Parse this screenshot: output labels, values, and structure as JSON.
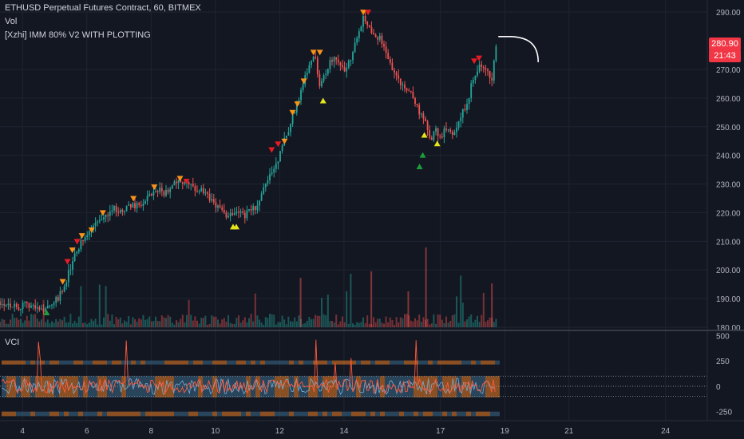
{
  "legend": {
    "title": "ETHUSD Perpetual Futures Contract, 60, BITMEX",
    "vol_label": "Vol",
    "indicator_label": "[Xzhi] IMM 80% V2 WITH PLOTTING"
  },
  "price_tags": {
    "last_price": "280.90",
    "countdown": "21:43"
  },
  "sub_pane": {
    "label": "VCI"
  },
  "colors": {
    "background": "#131722",
    "grid": "#1f2431",
    "up": "#26a69a",
    "down": "#ef5350",
    "tag_bg": "#f23645",
    "arrow_orange": "#f7931a",
    "arrow_red": "#e51c23",
    "arrow_yellow": "#e5e51c",
    "arrow_green": "#1b9e3a",
    "vci_orange": "#ed7d22",
    "vci_blue": "#3b6c8c"
  },
  "chart_data": [
    {
      "type": "line",
      "name": "price",
      "x_ticks": [
        "4",
        "6",
        "8",
        "10",
        "12",
        "14",
        "17",
        "19",
        "21",
        "24"
      ],
      "y_ticks": [
        "180.00",
        "190.00",
        "200.00",
        "210.00",
        "220.00",
        "230.00",
        "240.00",
        "250.00",
        "260.00",
        "270.00",
        "290.00"
      ],
      "ylim": [
        180,
        292
      ],
      "x_range_days": [
        3.3,
        25.3
      ],
      "x": [
        3.3,
        3.6,
        3.9,
        4.2,
        4.5,
        4.8,
        5.1,
        5.25,
        5.4,
        5.6,
        5.8,
        6.0,
        6.2,
        6.4,
        6.6,
        6.8,
        7.0,
        7.2,
        7.4,
        7.6,
        7.8,
        8.0,
        8.2,
        8.4,
        8.6,
        8.8,
        9.0,
        9.2,
        9.5,
        9.7,
        9.9,
        10.1,
        10.3,
        10.5,
        10.7,
        10.9,
        11.1,
        11.3,
        11.5,
        11.7,
        11.9,
        12.0,
        12.1,
        12.3,
        12.5,
        12.65,
        12.8,
        12.95,
        13.1,
        13.25,
        13.4,
        13.6,
        13.8,
        14.0,
        14.2,
        14.4,
        14.6,
        14.75,
        14.9,
        15.1,
        15.3,
        15.6,
        15.9,
        16.1,
        16.3,
        16.5,
        16.7,
        16.85,
        17.0,
        17.2,
        17.4,
        17.6,
        17.8,
        18.0,
        18.2,
        18.4,
        18.6,
        18.75
      ],
      "y": [
        189,
        188,
        187,
        188,
        186,
        187,
        190,
        193,
        198,
        204,
        209,
        212,
        215,
        217,
        219,
        222,
        220,
        221,
        223,
        222,
        224,
        226,
        228,
        227,
        229,
        231,
        230,
        229,
        228,
        226,
        224,
        222,
        219,
        220,
        221,
        219,
        221,
        222,
        228,
        233,
        238,
        240,
        244,
        250,
        257,
        262,
        268,
        273,
        275,
        264,
        268,
        274,
        272,
        270,
        274,
        282,
        288,
        286,
        283,
        281,
        276,
        268,
        263,
        262,
        256,
        252,
        245,
        249,
        246,
        250,
        248,
        253,
        257,
        266,
        271,
        270,
        266,
        280.9
      ],
      "last_price": 280.9
    },
    {
      "type": "bar",
      "name": "Vol",
      "note": "volume histogram at the bottom of the price pane"
    },
    {
      "type": "line",
      "name": "VCI",
      "y_ticks": [
        "500",
        "250",
        "0",
        "-250"
      ],
      "ylim": [
        -300,
        520
      ]
    }
  ]
}
